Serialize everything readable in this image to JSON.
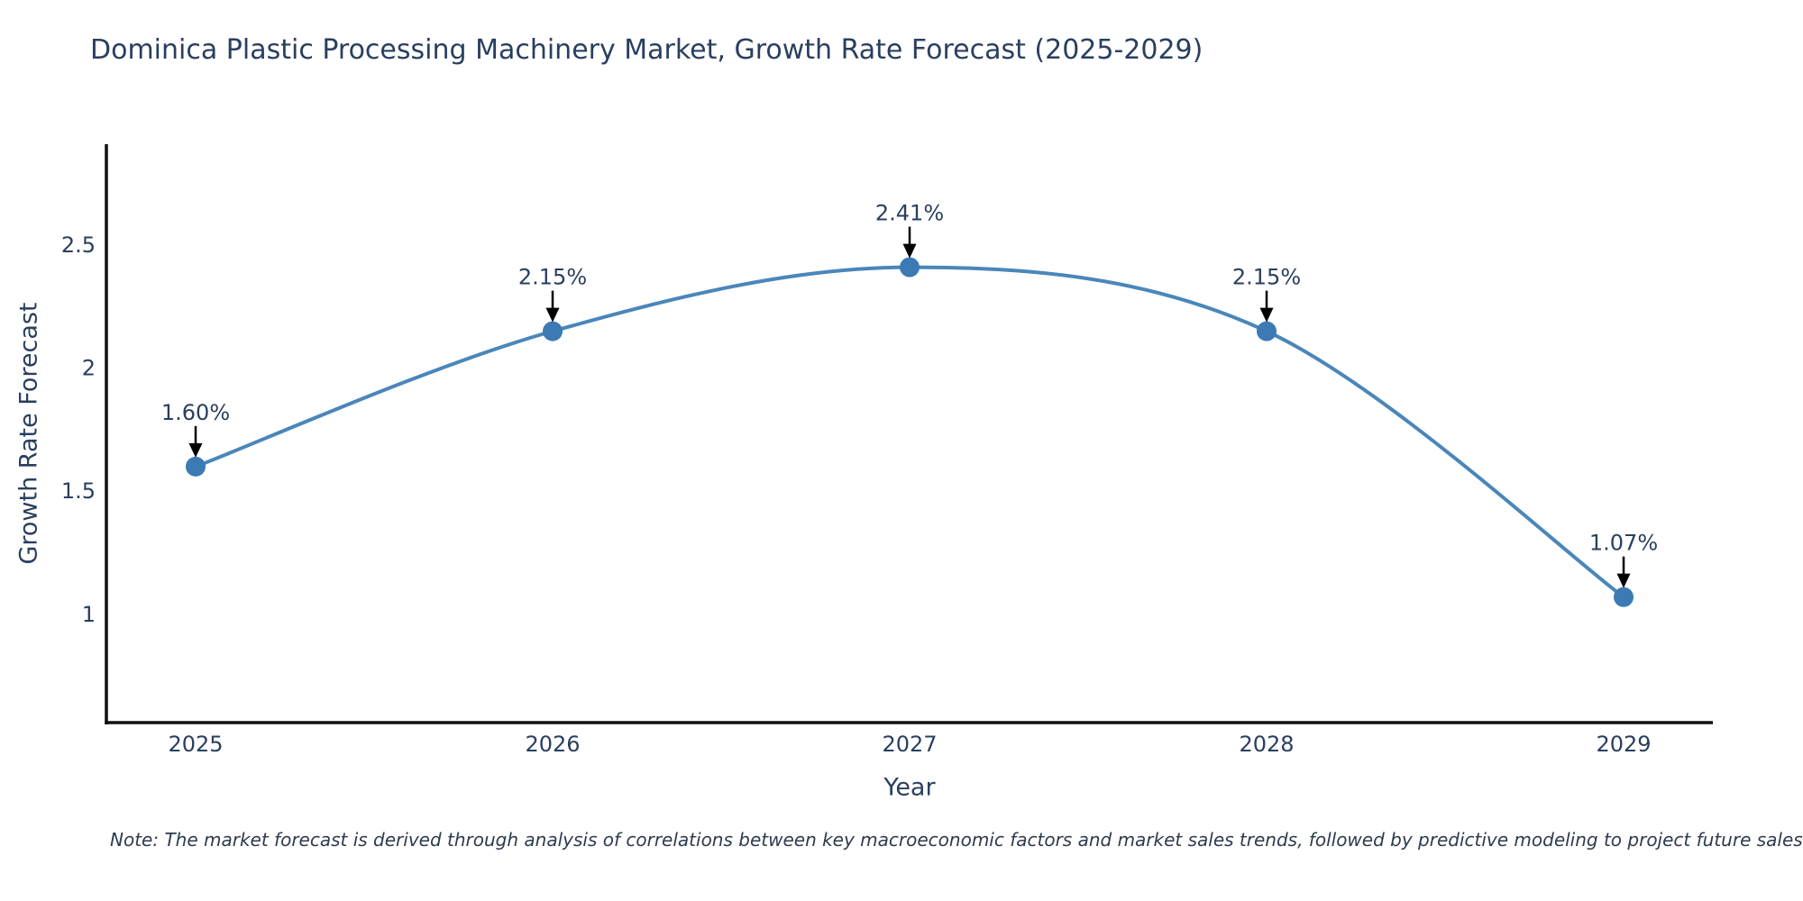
{
  "note": "Note: The market forecast is derived through analysis of correlations between key macroeconomic factors and market sales trends, followed by predictive modeling to project future sales",
  "chart_data": {
    "type": "line",
    "title": "Dominica Plastic Processing Machinery Market, Growth Rate Forecast (2025-2029)",
    "xlabel": "Year",
    "ylabel": "Growth Rate Forecast",
    "x": [
      2025,
      2026,
      2027,
      2028,
      2029
    ],
    "x_tick_labels": [
      "2025",
      "2026",
      "2027",
      "2028",
      "2029"
    ],
    "series": [
      {
        "name": "Growth Rate Forecast",
        "values": [
          1.6,
          2.15,
          2.41,
          2.15,
          1.07
        ]
      }
    ],
    "point_labels": [
      "1.60%",
      "2.15%",
      "2.41%",
      "2.15%",
      "1.07%"
    ],
    "y_ticks": [
      1,
      1.5,
      2,
      2.5
    ],
    "y_tick_labels": [
      "1",
      "1.5",
      "2",
      "2.5"
    ],
    "xlim": [
      2024.75,
      2029.25
    ],
    "ylim": [
      0.56,
      2.91
    ],
    "line_shape": "spline",
    "grid": false,
    "legend_position": "none",
    "colors": {
      "line": "#4a86ba",
      "marker": "#3c7ab4",
      "arrow": "#000000",
      "axis": "#111111",
      "text": "#2a3f5f"
    }
  }
}
